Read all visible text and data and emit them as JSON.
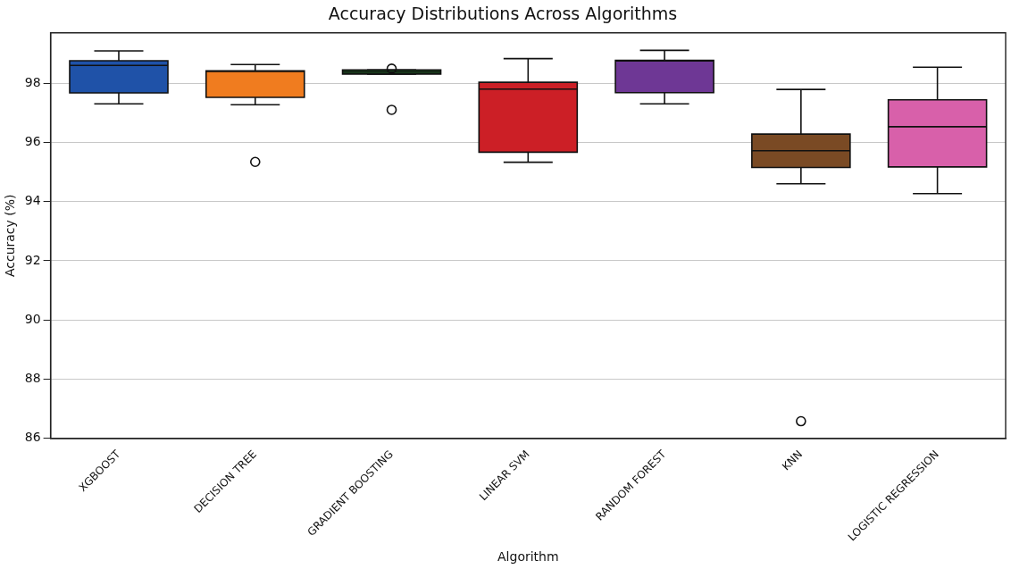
{
  "chart_data": {
    "type": "box",
    "title": "Accuracy Distributions Across Algorithms",
    "xlabel": "Algorithm",
    "ylabel": "Accuracy (%)",
    "categories": [
      "XGBOOST",
      "DECISION TREE",
      "GRADIENT BOOSTING",
      "LINEAR SVM",
      "RANDOM FOREST",
      "KNN",
      "LOGISTIC REGRESSION"
    ],
    "colors": [
      "#1f52a8",
      "#f07c1f",
      "#1e5a24",
      "#cc1f26",
      "#6e3795",
      "#7a4a24",
      "#d860aa"
    ],
    "boxes": [
      {
        "low": 97.3,
        "q1": 97.67,
        "median": 98.6,
        "q3": 98.76,
        "high": 99.09
      },
      {
        "low": 97.27,
        "q1": 97.52,
        "median": 98.4,
        "q3": 98.42,
        "high": 98.63,
        "outliers": [
          95.34
        ]
      },
      {
        "low": 98.31,
        "q1": 98.31,
        "median": 98.38,
        "q3": 98.45,
        "high": 98.45,
        "outliers": [
          98.49,
          97.1
        ]
      },
      {
        "low": 95.33,
        "q1": 95.67,
        "median": 97.8,
        "q3": 98.03,
        "high": 98.83
      },
      {
        "low": 97.3,
        "q1": 97.68,
        "median": 98.75,
        "q3": 98.77,
        "high": 99.11
      },
      {
        "low": 94.6,
        "q1": 95.15,
        "median": 95.72,
        "q3": 96.28,
        "high": 97.79,
        "outliers": [
          86.58
        ]
      },
      {
        "low": 94.27,
        "q1": 95.17,
        "median": 96.53,
        "q3": 97.44,
        "high": 98.54
      }
    ],
    "ylim": [
      86,
      99.7
    ],
    "yticks": [
      86,
      88,
      90,
      92,
      94,
      96,
      98
    ],
    "grid": "y"
  }
}
